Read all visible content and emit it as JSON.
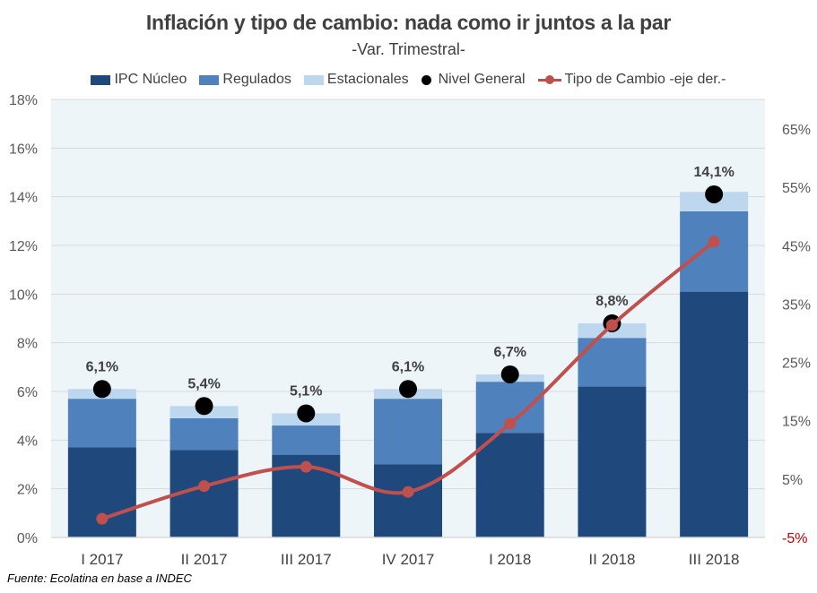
{
  "chart_data": {
    "type": "bar",
    "subtype": "stacked-bar-with-dots-and-line",
    "title": "Inflación y tipo de cambio: nada como ir juntos a la par",
    "subtitle": "-Var. Trimestral-",
    "categories": [
      "I 2017",
      "II 2017",
      "III 2017",
      "IV 2017",
      "I 2018",
      "II 2018",
      "III 2018"
    ],
    "stacked_series": [
      {
        "name": "IPC Núcleo",
        "color": "#1f497d",
        "values": [
          3.7,
          3.6,
          3.4,
          3.0,
          4.3,
          6.2,
          10.1
        ]
      },
      {
        "name": "Regulados",
        "color": "#4f81bd",
        "values": [
          2.0,
          1.3,
          1.2,
          2.7,
          2.1,
          2.0,
          3.3
        ]
      },
      {
        "name": "Estacionales",
        "color": "#bdd7ee",
        "values": [
          0.4,
          0.5,
          0.5,
          0.4,
          0.3,
          0.6,
          0.8
        ]
      }
    ],
    "dot_series": {
      "name": "Nivel General",
      "color": "#000000",
      "values": [
        6.1,
        5.4,
        5.1,
        6.1,
        6.7,
        8.8,
        14.1
      ],
      "labels": [
        "6,1%",
        "5,4%",
        "5,1%",
        "6,1%",
        "6,7%",
        "8,8%",
        "14,1%"
      ]
    },
    "line_series": {
      "name": "Tipo de Cambio -eje der.-",
      "color": "#c0504d",
      "axis": "right",
      "values": [
        -1.8,
        3.8,
        7.1,
        2.8,
        14.5,
        31.4,
        45.7
      ]
    },
    "left_axis": {
      "ylim": [
        0,
        18
      ],
      "ticks": [
        0,
        2,
        4,
        6,
        8,
        10,
        12,
        14,
        16,
        18
      ],
      "tick_labels": [
        "0%",
        "2%",
        "4%",
        "6%",
        "8%",
        "10%",
        "12%",
        "14%",
        "16%",
        "18%"
      ]
    },
    "right_axis": {
      "ylim": [
        -5,
        65
      ],
      "ticks": [
        -5,
        5,
        15,
        25,
        35,
        45,
        55,
        65
      ],
      "tick_labels": [
        "-5%",
        "5%",
        "15%",
        "25%",
        "35%",
        "45%",
        "55%",
        "65%"
      ],
      "negative_color": "#c00000"
    },
    "grid": true,
    "legend_position": "top",
    "xlabel": "",
    "ylabel": ""
  },
  "legend": {
    "items": [
      {
        "label": "IPC Núcleo",
        "kind": "swatch",
        "color": "#1f497d"
      },
      {
        "label": "Regulados",
        "kind": "swatch",
        "color": "#4f81bd"
      },
      {
        "label": "Estacionales",
        "kind": "swatch",
        "color": "#bdd7ee"
      },
      {
        "label": "Nivel General",
        "kind": "dot",
        "color": "#000000"
      },
      {
        "label": "Tipo de Cambio -eje der.-",
        "kind": "line",
        "color": "#c0504d"
      }
    ]
  },
  "source": "Fuente: Ecolatina en base a INDEC",
  "colors": {
    "plot_bg": "#edf5f9",
    "grid": "#d9d9d9",
    "text": "#404040"
  }
}
